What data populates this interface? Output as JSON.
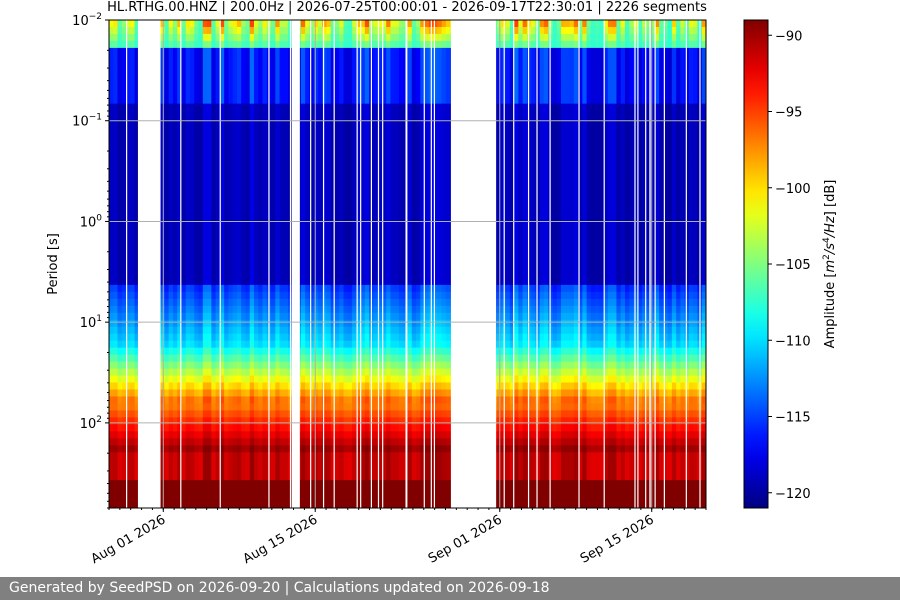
{
  "chart_data": {
    "type": "heatmap",
    "title": "HL.RTHG.00.HNZ | 200.0Hz | 2026-07-25T00:00:01 - 2026-09-17T22:30:01 | 2226 segments",
    "ylabel": "Period [s]",
    "y_scale": "log",
    "y_inverted": true,
    "y_range": [
      0.01,
      700
    ],
    "y_ticks": [
      {
        "value": 0.01,
        "base": "10",
        "exp": "−2"
      },
      {
        "value": 0.1,
        "base": "10",
        "exp": "−1"
      },
      {
        "value": 1,
        "base": "10",
        "exp": "0"
      },
      {
        "value": 10,
        "base": "10",
        "exp": "1"
      },
      {
        "value": 100,
        "base": "10",
        "exp": "2"
      }
    ],
    "x_range": [
      "2026-07-27",
      "2026-09-20"
    ],
    "x_ticks": [
      {
        "date": "2026-08-01",
        "label": "Aug 01 2026"
      },
      {
        "date": "2026-08-15",
        "label": "Aug 15 2026"
      },
      {
        "date": "2026-09-01",
        "label": "Sep 01 2026"
      },
      {
        "date": "2026-09-15",
        "label": "Sep 15 2026"
      }
    ],
    "data_gaps": [
      [
        "2026-07-29T16:00",
        "2026-07-31T18:00"
      ],
      [
        "2026-08-12T20:00",
        "2026-08-13T14:00"
      ],
      [
        "2026-08-27T12:00",
        "2026-08-31T16:00"
      ]
    ],
    "grid": true,
    "colorbar": {
      "label_parts": [
        "Amplitude [",
        "m",
        "2",
        "/s",
        "4",
        "/",
        "Hz",
        "] [dB]"
      ],
      "range": [
        -121,
        -89
      ],
      "ticks": [
        -90,
        -95,
        -100,
        -105,
        -110,
        -115,
        -120
      ],
      "tick_labels": [
        "−90",
        "−95",
        "−100",
        "−105",
        "−110",
        "−115",
        "−120"
      ],
      "colormap": "jet"
    }
  },
  "footer": "Generated by SeedPSD on 2026-09-20 | Calculations updated on 2026-09-18"
}
